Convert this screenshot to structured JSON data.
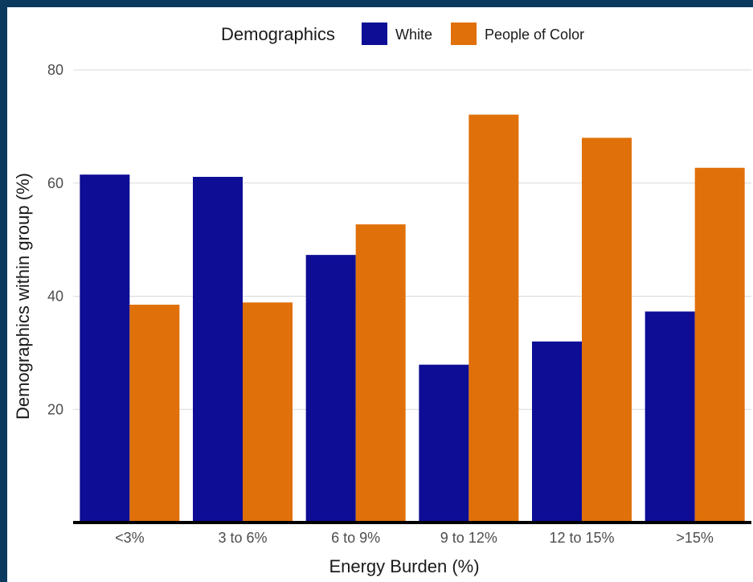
{
  "chart_data": {
    "type": "bar",
    "categories": [
      "<3%",
      "3 to 6%",
      "6 to 9%",
      "9 to 12%",
      "12 to 15%",
      ">15%"
    ],
    "series": [
      {
        "name": "White",
        "color": "#0d0d96",
        "values": [
          61.5,
          61.1,
          47.3,
          27.9,
          32.0,
          37.3
        ]
      },
      {
        "name": "People of Color",
        "color": "#e07009",
        "values": [
          38.5,
          38.9,
          52.7,
          72.1,
          68.0,
          62.7
        ]
      }
    ],
    "xlabel": "Energy Burden (%)",
    "ylabel": "Demographics within group (%)",
    "ylim": [
      0,
      80
    ],
    "yticks": [
      20,
      40,
      60,
      80
    ],
    "legend": {
      "title": "Demographics",
      "position": "top"
    },
    "grid": true
  }
}
